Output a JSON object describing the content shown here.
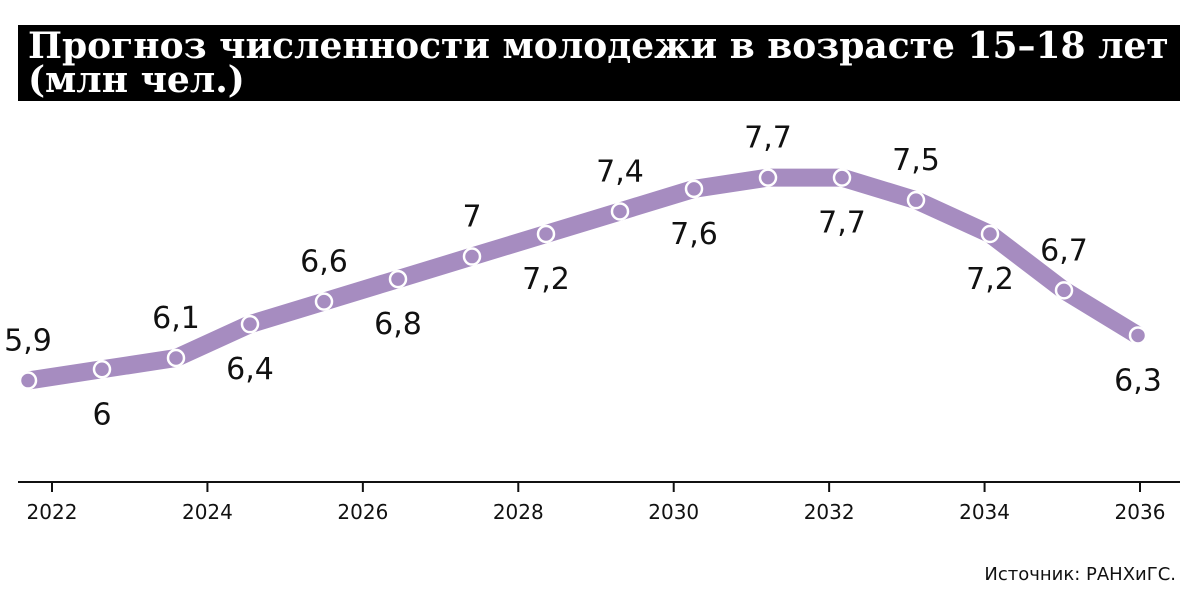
{
  "chart_data": {
    "type": "line",
    "title": "Прогноз численности молодежи в возрасте 15–18 лет (млн чел.)",
    "source": "Источник: РАНХиГС.",
    "series": [
      {
        "color": "#a68cc0",
        "values": [
          5.9,
          6,
          6.1,
          6.4,
          6.6,
          6.8,
          7,
          7.2,
          7.4,
          7.6,
          7.7,
          7.7,
          7.5,
          7.2,
          6.7,
          6.3
        ],
        "value_labels": [
          "5,9",
          "6",
          "6,1",
          "6,4",
          "6,6",
          "6,8",
          "7",
          "7,2",
          "7,4",
          "7,6",
          "7,7",
          "7,7",
          "7,5",
          "7,2",
          "6,7",
          "6,3"
        ]
      }
    ],
    "xlim": [
      2022,
      2036
    ],
    "xticks": [
      2022,
      2024,
      2026,
      2028,
      2030,
      2032,
      2034,
      2036
    ],
    "ylim": [
      5,
      8.3
    ]
  }
}
